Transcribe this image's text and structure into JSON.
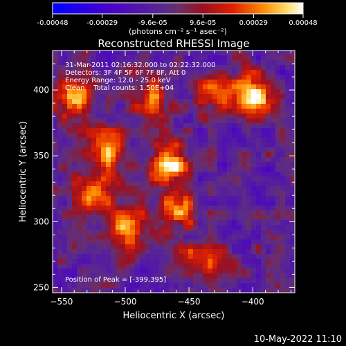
{
  "chart_data": {
    "type": "heatmap",
    "title": "Reconstructed RHESSI Image",
    "xlabel": "Heliocentric X (arcsec)",
    "ylabel": "Heliocentric Y (arcsec)",
    "xlim": [
      -557,
      -367
    ],
    "ylim": [
      246,
      430
    ],
    "x_ticks": [
      -550,
      -500,
      -450,
      -400
    ],
    "y_ticks": [
      250,
      300,
      350,
      400
    ],
    "colorbar": {
      "min": -0.00048,
      "max": 0.00048,
      "tick_values": [
        -0.00048,
        -0.00029,
        -9.6e-05,
        9.6e-05,
        0.00029,
        0.00048
      ],
      "tick_labels": [
        "-0.00048",
        "-0.00029",
        "-9.6e-05",
        "9.6e-05",
        "0.00029",
        "0.00048"
      ],
      "units_label": "(photons cm⁻² s⁻¹ asec⁻²)"
    },
    "annotations": [
      "31-Mar-2011 02:16:32.000 to 02:22:32.000",
      "Detectors: 3F 4F 5F 6F 7F 8F, Att 0",
      "Energy Range: 12.0 - 25.0 keV",
      "Clean    Total counts: 1.50E+04"
    ],
    "peak_label": "Position of Peak = [-399,395]",
    "peak": [
      -399,
      395
    ],
    "bright_sources": [
      {
        "x": -399,
        "y": 395,
        "value": 0.00048
      },
      {
        "x": -465,
        "y": 345,
        "value": 0.00043
      },
      {
        "x": -540,
        "y": 393,
        "value": 0.00038
      },
      {
        "x": -515,
        "y": 355,
        "value": 0.00032
      },
      {
        "x": -525,
        "y": 320,
        "value": 0.0003
      },
      {
        "x": -460,
        "y": 310,
        "value": 0.00028
      },
      {
        "x": -500,
        "y": 295,
        "value": 0.00026
      },
      {
        "x": -440,
        "y": 270,
        "value": 0.00025
      },
      {
        "x": -480,
        "y": 395,
        "value": 0.00024
      },
      {
        "x": -430,
        "y": 400,
        "value": 0.00022
      }
    ],
    "grid": false
  },
  "footer_date": "10-May-2022 11:10"
}
